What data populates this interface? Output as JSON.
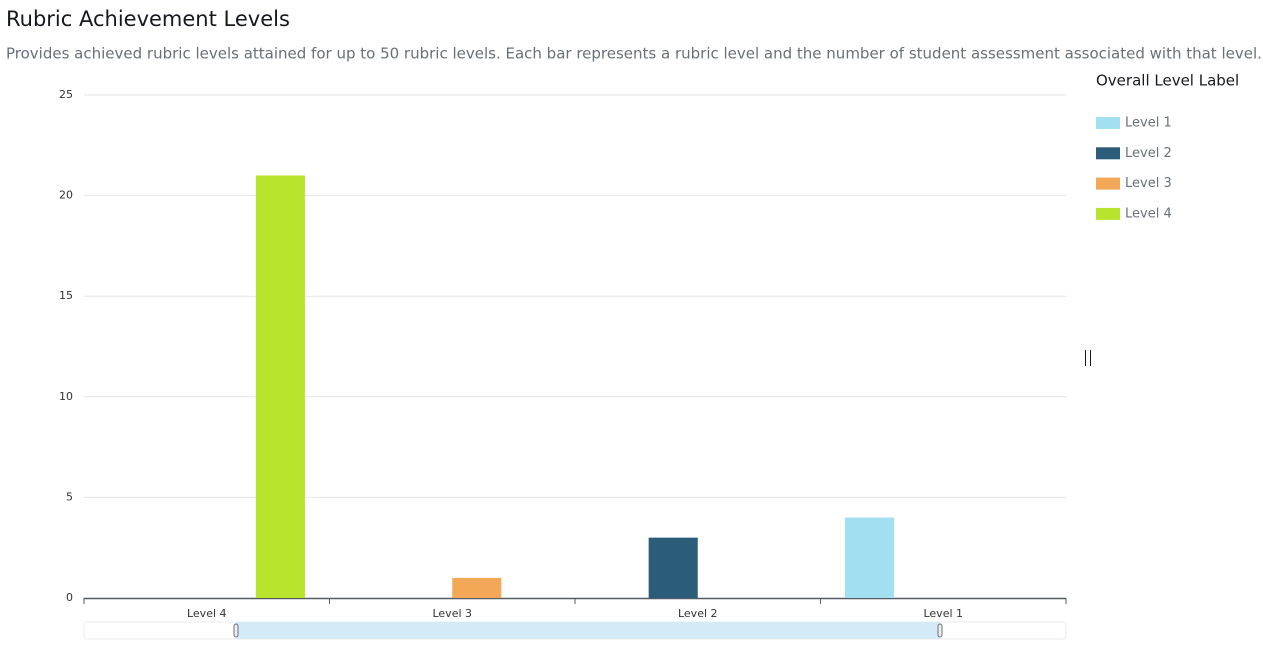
{
  "chart_data": {
    "type": "bar",
    "title": "Rubric Achievement Levels",
    "subtitle": "Provides achieved rubric levels attained for up to 50 rubric levels.  Each bar represents a rubric level and the number of student assessment associated with that level.",
    "legend_title": "Overall Level Label",
    "categories": [
      "Level 4",
      "Level 3",
      "Level 2",
      "Level 1"
    ],
    "series": [
      {
        "name": "Level 1",
        "color": "#a2dff0",
        "values": [
          null,
          null,
          null,
          4
        ]
      },
      {
        "name": "Level 2",
        "color": "#2b5c79",
        "values": [
          null,
          null,
          3,
          null
        ]
      },
      {
        "name": "Level 3",
        "color": "#f3a857",
        "values": [
          null,
          1,
          null,
          null
        ]
      },
      {
        "name": "Level 4",
        "color": "#b9e42d",
        "values": [
          21,
          null,
          null,
          null
        ]
      }
    ],
    "ylim": [
      0,
      25
    ],
    "yticks": [
      0,
      5,
      10,
      15,
      20,
      25
    ],
    "grid": true,
    "legend": "right"
  }
}
